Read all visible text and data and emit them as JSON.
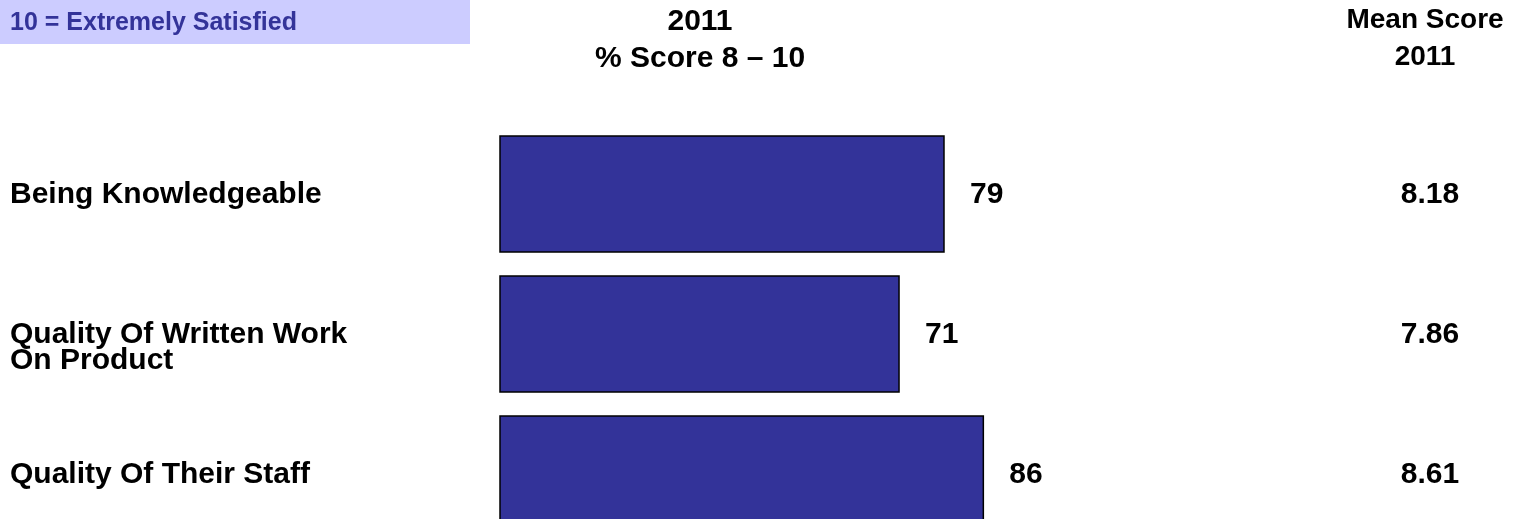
{
  "chart_data": {
    "type": "bar",
    "orientation": "horizontal",
    "title": "2011\n% Score 8 – 10",
    "categories": [
      "Being Knowledgeable",
      "Quality Of Written Work On Product",
      "Quality Of Their Staff"
    ],
    "values": [
      79,
      71,
      86
    ],
    "color": "#333399",
    "data_labels": true,
    "annotations": [
      "10 = Extremely Satisfied",
      "Mean Score\n2011",
      "8.18",
      "7.86",
      "8.61"
    ]
  }
}
